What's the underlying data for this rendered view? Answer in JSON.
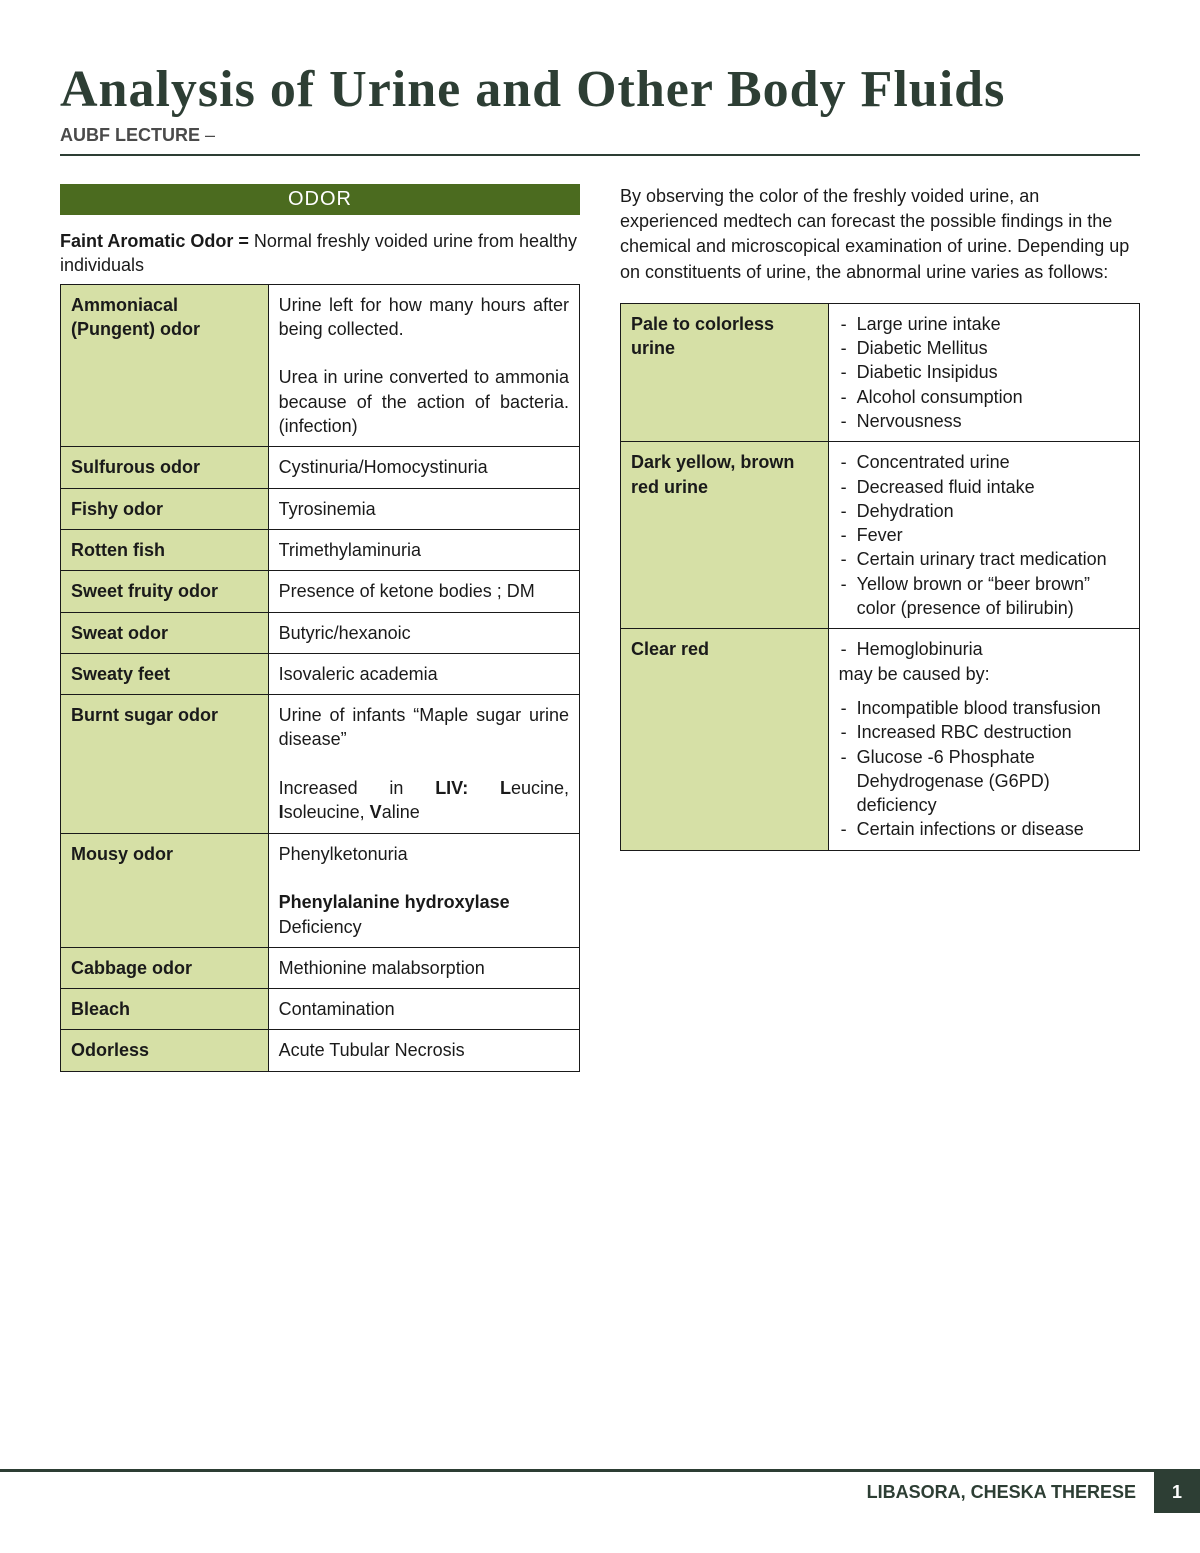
{
  "colors": {
    "banner_bg": "#4b6b1f",
    "banner_text": "#ffffff",
    "cell_key_bg": "#d6e0a6",
    "border": "#1a1a1a",
    "accent_dark": "#2d3e34",
    "page_bg": "#ffffff",
    "text": "#1a1a1a"
  },
  "typography": {
    "title_fontsize": 52,
    "title_font": "Brush Script MT / cursive",
    "body_fontsize": 18,
    "subtitle_fontsize": 18
  },
  "header": {
    "title": "Analysis of Urine and Other Body Fluids",
    "subtitle_bold": "AUBF LECTURE",
    "subtitle_dash": " –"
  },
  "odor": {
    "banner": "ODOR",
    "lead_bold": "Faint Aromatic Odor = ",
    "lead_rest": "Normal freshly voided urine from healthy individuals",
    "rows": [
      {
        "key": "Ammoniacal (Pungent) odor",
        "val_html": "Urine left for how many hours after being collected.<br><br>Urea in urine converted to ammonia because of the action of bacteria. (infection)",
        "justify": true
      },
      {
        "key": "Sulfurous odor",
        "val_html": "Cystinuria/Homocystinuria"
      },
      {
        "key": "Fishy odor",
        "val_html": "Tyrosinemia"
      },
      {
        "key": "Rotten fish",
        "val_html": "Trimethylaminuria"
      },
      {
        "key": "Sweet fruity odor",
        "val_html": "Presence of ketone bodies ; DM",
        "key_justify": true,
        "justify": true
      },
      {
        "key": "Sweat odor",
        "val_html": "Butyric/hexanoic"
      },
      {
        "key": "Sweaty feet",
        "val_html": "Isovaleric academia"
      },
      {
        "key": "Burnt sugar odor",
        "val_html": "Urine of infants “Maple sugar urine disease”<br><br>Increased in <b>LIV: L</b>eucine, <b>I</b>soleucine, <b>V</b>aline",
        "key_justify": true,
        "justify": true
      },
      {
        "key": "Mousy odor",
        "val_html": "Phenylketonuria<br><br><b>Phenylalanine hydroxylase</b> Deficiency"
      },
      {
        "key": "Cabbage odor",
        "val_html": "Methionine malabsorption"
      },
      {
        "key": "Bleach",
        "val_html": "Contamination"
      },
      {
        "key": "Odorless",
        "val_html": "Acute Tubular Necrosis"
      }
    ]
  },
  "color_section": {
    "intro": "By observing the color of the freshly voided urine, an experienced medtech can forecast the possible findings in the chemical and microscopical examination of urine. Depending up on constituents of urine, the abnormal urine varies as follows:",
    "rows": [
      {
        "key": "Pale to colorless urine",
        "items": [
          "Large urine intake",
          "Diabetic Mellitus",
          "Diabetic Insipidus",
          "Alcohol consumption",
          "Nervousness"
        ]
      },
      {
        "key": "Dark yellow, brown red urine",
        "items": [
          "Concentrated urine",
          "Decreased fluid intake",
          "Dehydration",
          "Fever",
          "Certain urinary tract medication",
          "Yellow brown or “beer brown” color (presence of bilirubin)"
        ]
      },
      {
        "key": "Clear red",
        "lead_item": "Hemoglobinuria",
        "lead_after": "may be caused by:",
        "items": [
          "Incompatible blood transfusion",
          "Increased RBC destruction",
          "Glucose -6 Phosphate Dehydrogenase (G6PD) deficiency",
          "Certain infections or disease"
        ]
      }
    ]
  },
  "footer": {
    "name": "LIBASORA, CHESKA THERESE",
    "page": "1"
  }
}
